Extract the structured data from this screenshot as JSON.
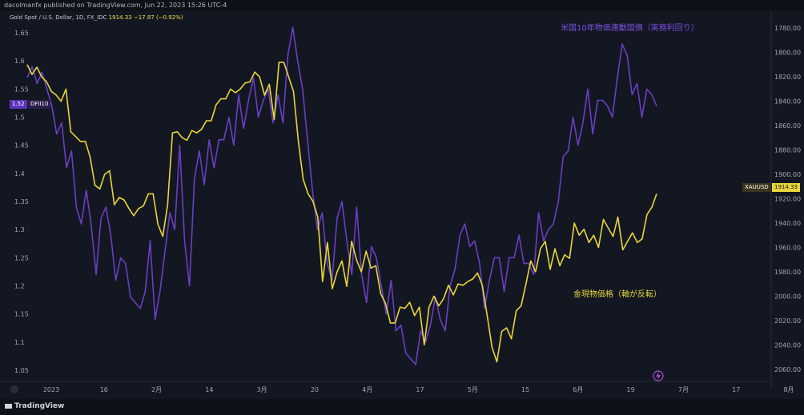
{
  "header": {
    "published": "dacolmanfx published on TradingView.com, Jun 22, 2023 15:26 UTC-4"
  },
  "legend": {
    "symbol": "Gold Spot / U.S. Dollar, 1D, FX_IDC",
    "value": "1914.33",
    "change": "−17.87 (−0.92%)"
  },
  "footer": {
    "brand": "TradingView"
  },
  "colors": {
    "gold": "#e8d63a",
    "real_yield": "#6a3fc4",
    "background": "#131722"
  },
  "chart_data": {
    "type": "line",
    "title": "",
    "annotations": [
      "米国10年物価連動国債（実務利回り）",
      "金現物価格（軸が反転）"
    ],
    "x_tick_labels": [
      "2023",
      "16",
      "2月",
      "14",
      "3月",
      "20",
      "4月",
      "17",
      "5月",
      "15",
      "6月",
      "19",
      "7月",
      "17",
      "8月"
    ],
    "left_axis": {
      "label": "",
      "ticks": [
        "1.65",
        "1.6",
        "1.55",
        "1.5",
        "1.45",
        "1.4",
        "1.35",
        "1.3",
        "1.25",
        "1.2",
        "1.15",
        "1.1",
        "1.05"
      ],
      "range": [
        1.03,
        1.68
      ]
    },
    "right_axis": {
      "label": "",
      "inverted": true,
      "ticks": [
        "1780.00",
        "1800.00",
        "1820.00",
        "1840.00",
        "1860.00",
        "1880.00",
        "1900.00",
        "1920.00",
        "1940.00",
        "1960.00",
        "1980.00",
        "2000.00",
        "2020.00",
        "2040.00",
        "2060.00"
      ],
      "range": [
        1770,
        2070
      ]
    },
    "tags": {
      "left": {
        "value": "1.52",
        "symbol": "DFII10"
      },
      "right": {
        "symbol": "XAUUSD",
        "value": "1914.33"
      }
    },
    "series": [
      {
        "name": "DFII10",
        "axis": "left",
        "values": [
          1.57,
          1.59,
          1.56,
          1.58,
          1.55,
          1.52,
          1.47,
          1.49,
          1.41,
          1.44,
          1.34,
          1.31,
          1.37,
          1.31,
          1.22,
          1.32,
          1.34,
          1.29,
          1.21,
          1.25,
          1.24,
          1.18,
          1.17,
          1.16,
          1.19,
          1.28,
          1.14,
          1.19,
          1.26,
          1.33,
          1.3,
          1.45,
          1.28,
          1.2,
          1.39,
          1.44,
          1.38,
          1.46,
          1.41,
          1.46,
          1.46,
          1.5,
          1.45,
          1.54,
          1.48,
          1.53,
          1.57,
          1.5,
          1.53,
          1.55,
          1.49,
          1.54,
          1.49,
          1.61,
          1.66,
          1.6,
          1.55,
          1.46,
          1.37,
          1.3,
          1.33,
          1.24,
          1.21,
          1.32,
          1.35,
          1.28,
          1.22,
          1.34,
          1.22,
          1.17,
          1.27,
          1.25,
          1.2,
          1.15,
          1.21,
          1.12,
          1.13,
          1.08,
          1.07,
          1.06,
          1.12,
          1.1,
          1.13,
          1.18,
          1.14,
          1.12,
          1.2,
          1.23,
          1.29,
          1.31,
          1.27,
          1.28,
          1.24,
          1.16,
          1.21,
          1.25,
          1.25,
          1.19,
          1.25,
          1.25,
          1.29,
          1.24,
          1.24,
          1.22,
          1.33,
          1.28,
          1.3,
          1.31,
          1.35,
          1.43,
          1.44,
          1.5,
          1.45,
          1.49,
          1.55,
          1.47,
          1.53,
          1.53,
          1.52,
          1.5,
          1.57,
          1.63,
          1.61,
          1.54,
          1.56,
          1.5,
          1.55,
          1.54,
          1.52
        ]
      },
      {
        "name": "XAUUSD",
        "axis": "right",
        "values": [
          1810,
          1818,
          1812,
          1820,
          1824,
          1832,
          1835,
          1840,
          1830,
          1865,
          1869,
          1873,
          1873,
          1886,
          1909,
          1912,
          1900,
          1897,
          1925,
          1919,
          1921,
          1928,
          1934,
          1928,
          1926,
          1916,
          1916,
          1941,
          1951,
          1925,
          1866,
          1865,
          1870,
          1872,
          1864,
          1866,
          1863,
          1856,
          1856,
          1843,
          1838,
          1838,
          1830,
          1833,
          1830,
          1825,
          1824,
          1816,
          1820,
          1835,
          1826,
          1855,
          1808,
          1808,
          1820,
          1832,
          1873,
          1904,
          1916,
          1922,
          1935,
          1988,
          1956,
          1994,
          1980,
          1971,
          1992,
          1955,
          1970,
          1980,
          1963,
          1977,
          1975,
          1998,
          2006,
          2022,
          2022,
          2009,
          2010,
          2005,
          2016,
          2009,
          2040,
          2009,
          2000,
          2008,
          2002,
          1991,
          1999,
          1990,
          1991,
          1988,
          1986,
          1981,
          1991,
          2016,
          2042,
          2054,
          2029,
          2026,
          2035,
          2012,
          2008,
          1990,
          1971,
          1980,
          1961,
          1955,
          1978,
          1961,
          1975,
          1966,
          1969,
          1940,
          1950,
          1945,
          1956,
          1950,
          1960,
          1937,
          1944,
          1951,
          1935,
          1962,
          1955,
          1948,
          1956,
          1953,
          1933,
          1927,
          1916
        ]
      }
    ]
  }
}
